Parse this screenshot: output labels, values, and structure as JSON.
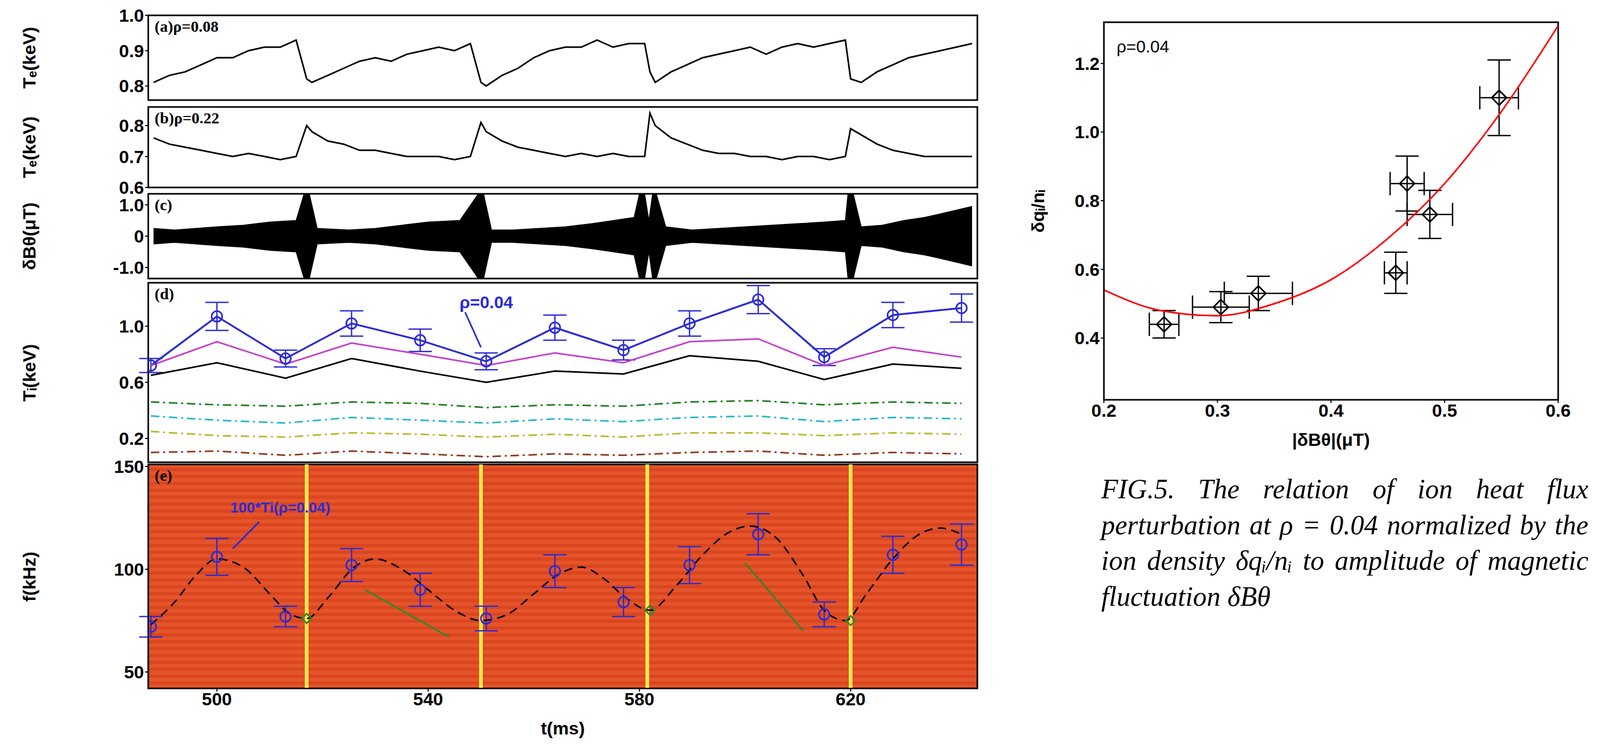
{
  "chart_data": [
    {
      "type": "line",
      "title": "(a)ρ=0.08",
      "ylabel": "Tₑ(keV)",
      "tick_labels": "y",
      "x": [
        488,
        491,
        494,
        497,
        500,
        503,
        506,
        509,
        512,
        515,
        517,
        518,
        521,
        524,
        527,
        530,
        533,
        536,
        539,
        542,
        545,
        548,
        550,
        551,
        554,
        557,
        560,
        563,
        566,
        569,
        572,
        575,
        578,
        581,
        582,
        583,
        586,
        589,
        592,
        595,
        598,
        601,
        604,
        607,
        610,
        613,
        616,
        619,
        620,
        622,
        625,
        628,
        631,
        634,
        637,
        640,
        643
      ],
      "series": [
        {
          "color": "#000000",
          "line_style": "solid",
          "values": [
            0.81,
            0.83,
            0.84,
            0.86,
            0.88,
            0.88,
            0.9,
            0.91,
            0.91,
            0.93,
            0.82,
            0.81,
            0.83,
            0.85,
            0.87,
            0.88,
            0.87,
            0.89,
            0.9,
            0.91,
            0.9,
            0.92,
            0.81,
            0.8,
            0.83,
            0.85,
            0.88,
            0.9,
            0.91,
            0.91,
            0.93,
            0.91,
            0.92,
            0.92,
            0.84,
            0.81,
            0.84,
            0.86,
            0.88,
            0.89,
            0.9,
            0.91,
            0.89,
            0.91,
            0.92,
            0.91,
            0.92,
            0.93,
            0.82,
            0.81,
            0.84,
            0.86,
            0.88,
            0.89,
            0.9,
            0.91,
            0.92
          ]
        }
      ],
      "xlim": [
        487,
        644
      ],
      "ylim": [
        0.76,
        1.0
      ],
      "yticks": [
        0.8,
        0.9,
        {
          "value": 1,
          "label": "1.0"
        }
      ]
    },
    {
      "type": "line",
      "title": "(b)ρ=0.22",
      "ylabel": "Tₑ(keV)",
      "tick_labels": "y",
      "x": [
        488,
        491,
        494,
        497,
        500,
        503,
        506,
        509,
        512,
        515,
        517,
        518,
        521,
        524,
        527,
        530,
        533,
        536,
        539,
        542,
        545,
        548,
        550,
        551,
        554,
        557,
        560,
        563,
        566,
        569,
        572,
        575,
        578,
        581,
        582,
        583,
        586,
        589,
        592,
        595,
        598,
        601,
        604,
        607,
        610,
        613,
        616,
        619,
        620,
        622,
        625,
        628,
        631,
        634,
        637,
        640,
        643
      ],
      "series": [
        {
          "color": "#000000",
          "line_style": "solid",
          "values": [
            0.76,
            0.74,
            0.73,
            0.72,
            0.71,
            0.7,
            0.71,
            0.7,
            0.69,
            0.7,
            0.8,
            0.78,
            0.75,
            0.74,
            0.72,
            0.72,
            0.71,
            0.7,
            0.7,
            0.7,
            0.69,
            0.7,
            0.81,
            0.78,
            0.75,
            0.73,
            0.72,
            0.71,
            0.7,
            0.71,
            0.7,
            0.71,
            0.7,
            0.7,
            0.84,
            0.8,
            0.76,
            0.74,
            0.72,
            0.71,
            0.71,
            0.7,
            0.7,
            0.69,
            0.7,
            0.7,
            0.69,
            0.7,
            0.79,
            0.77,
            0.74,
            0.72,
            0.71,
            0.7,
            0.7,
            0.7,
            0.7
          ]
        }
      ],
      "xlim": [
        487,
        644
      ],
      "ylim": [
        0.6,
        0.86
      ],
      "yticks": [
        0.6,
        0.7,
        0.8
      ]
    },
    {
      "type": "area",
      "title": "(c)",
      "ylabel": "δBθ(μT)",
      "tick_labels": "y",
      "x": [
        488,
        492,
        496,
        500,
        505,
        510,
        515,
        516.5,
        517.5,
        519,
        525,
        530,
        535,
        540,
        546,
        549.5,
        550.5,
        552,
        556,
        561,
        566,
        571,
        575,
        579,
        580,
        581,
        581.8,
        582.5,
        583.2,
        585,
        590,
        595,
        600,
        605,
        610,
        615,
        619,
        619.5,
        620.5,
        622,
        626,
        630,
        634,
        638,
        643
      ],
      "series": [
        {
          "color": "#000000",
          "upper": [
            0.25,
            0.2,
            0.25,
            0.3,
            0.35,
            0.45,
            0.5,
            1.35,
            1.35,
            0.25,
            0.2,
            0.25,
            0.35,
            0.45,
            0.5,
            1.35,
            1.35,
            0.2,
            0.2,
            0.25,
            0.3,
            0.4,
            0.5,
            0.6,
            1.35,
            1.35,
            0.5,
            1.35,
            1.35,
            0.3,
            0.2,
            0.25,
            0.3,
            0.35,
            0.4,
            0.45,
            0.5,
            1.35,
            1.35,
            0.3,
            0.35,
            0.5,
            0.6,
            0.75,
            0.95
          ],
          "lower": [
            -0.25,
            -0.2,
            -0.25,
            -0.3,
            -0.35,
            -0.45,
            -0.5,
            -1.35,
            -1.35,
            -0.25,
            -0.2,
            -0.25,
            -0.35,
            -0.45,
            -0.5,
            -1.35,
            -1.35,
            -0.2,
            -0.2,
            -0.25,
            -0.3,
            -0.4,
            -0.5,
            -0.6,
            -1.35,
            -1.35,
            -0.5,
            -1.35,
            -1.35,
            -0.3,
            -0.2,
            -0.25,
            -0.3,
            -0.35,
            -0.4,
            -0.45,
            -0.5,
            -1.35,
            -1.35,
            -0.3,
            -0.35,
            -0.5,
            -0.6,
            -0.75,
            -0.95
          ]
        }
      ],
      "xlim": [
        487,
        644
      ],
      "ylim": [
        -1.35,
        1.35
      ],
      "yticks": [
        {
          "value": -1,
          "label": "-1.0"
        },
        0,
        {
          "value": 1,
          "label": "1.0"
        }
      ]
    },
    {
      "type": "line",
      "title": "(d)",
      "ylabel": "Tᵢ(keV)",
      "tick_labels": "y",
      "x": [
        487.5,
        500,
        513,
        525.5,
        538.5,
        551,
        564,
        577,
        589.5,
        602.5,
        615,
        628,
        641
      ],
      "series": [
        {
          "name": "ρ=0.04",
          "color": "#2a2ad6",
          "marker": "circle",
          "line_style": "solid",
          "values": [
            0.72,
            1.07,
            0.77,
            1.02,
            0.9,
            0.75,
            0.99,
            0.83,
            1.02,
            1.19,
            0.78,
            1.08,
            1.13
          ],
          "errors": [
            0.05,
            0.1,
            0.06,
            0.09,
            0.08,
            0.06,
            0.09,
            0.07,
            0.09,
            0.1,
            0.06,
            0.09,
            0.1
          ]
        },
        {
          "color": "#c43ec8",
          "line_style": "solid",
          "values": [
            0.72,
            0.89,
            0.73,
            0.88,
            0.8,
            0.72,
            0.81,
            0.74,
            0.89,
            0.91,
            0.72,
            0.85,
            0.78
          ]
        },
        {
          "color": "#000000",
          "line_style": "solid",
          "values": [
            0.65,
            0.74,
            0.63,
            0.77,
            0.68,
            0.6,
            0.68,
            0.66,
            0.79,
            0.75,
            0.62,
            0.73,
            0.7
          ]
        },
        {
          "color": "#1f7f1f",
          "line_style": "dashdot",
          "values": [
            0.46,
            0.44,
            0.43,
            0.46,
            0.45,
            0.42,
            0.44,
            0.43,
            0.46,
            0.47,
            0.44,
            0.46,
            0.45
          ]
        },
        {
          "color": "#22b8c8",
          "line_style": "dashdot",
          "values": [
            0.36,
            0.33,
            0.31,
            0.35,
            0.33,
            0.31,
            0.34,
            0.32,
            0.35,
            0.36,
            0.32,
            0.35,
            0.34
          ]
        },
        {
          "color": "#b8b82a",
          "line_style": "dashdot",
          "values": [
            0.25,
            0.22,
            0.21,
            0.24,
            0.23,
            0.21,
            0.23,
            0.21,
            0.24,
            0.24,
            0.22,
            0.24,
            0.23
          ]
        },
        {
          "color": "#8b3a1a",
          "line_style": "dashdot",
          "values": [
            0.1,
            0.11,
            0.08,
            0.11,
            0.09,
            0.07,
            0.09,
            0.08,
            0.1,
            0.11,
            0.08,
            0.1,
            0.09
          ]
        }
      ],
      "xlim": [
        487,
        644
      ],
      "ylim": [
        0.03,
        1.31
      ],
      "yticks": [
        0.2,
        0.6,
        {
          "value": 1,
          "label": "1.0"
        }
      ]
    },
    {
      "type": "scatter",
      "title": "(e)",
      "ylabel": "f(kHz)",
      "xlabel": "t(ms)",
      "series": [
        {
          "name": "100*Ti(ρ=0.04)",
          "type": "scatter",
          "color": "#2a2ad6",
          "marker": "circle",
          "x": [
            487.5,
            500,
            513,
            525.5,
            538.5,
            551,
            564,
            577,
            589.5,
            602.5,
            615,
            628,
            641
          ],
          "values": [
            72,
            106,
            77,
            102,
            90,
            76,
            99,
            84,
            102,
            117,
            78,
            107,
            112
          ],
          "errors": [
            5,
            9,
            5,
            8,
            8,
            6,
            8,
            7,
            9,
            10,
            6,
            9,
            10
          ]
        },
        {
          "type": "line",
          "color": "#000000",
          "line_style": "dashed",
          "x": [
            487.5,
            492,
            496,
            500,
            505,
            510,
            514,
            517,
            521,
            526,
            530,
            535,
            540,
            545,
            550,
            555,
            560,
            565,
            569,
            573,
            577,
            582,
            587,
            592,
            597,
            601,
            606,
            611,
            615,
            619,
            623,
            628,
            633,
            637,
            641
          ],
          "values": [
            73,
            84,
            97,
            105,
            101,
            88,
            78,
            76,
            86,
            101,
            105,
            100,
            90,
            80,
            75,
            78,
            88,
            98,
            101,
            96,
            87,
            80,
            92,
            107,
            118,
            121,
            115,
            97,
            80,
            75,
            88,
            105,
            117,
            120,
            117
          ]
        },
        {
          "type": "line",
          "color": "#2a8a2a",
          "line_style": "solid",
          "x": [
            528,
            544
          ],
          "values": [
            90,
            67
          ]
        },
        {
          "type": "line",
          "color": "#2a8a2a",
          "line_style": "solid",
          "x": [
            600,
            611
          ],
          "values": [
            103,
            70
          ]
        },
        {
          "type": "scatter",
          "color": "#2a8a2a",
          "marker": "diamond",
          "x": [
            517,
            582,
            620
          ],
          "values": [
            76,
            80,
            75
          ]
        }
      ],
      "crash_times": [
        517,
        550,
        581.5,
        620
      ],
      "xlim": [
        487,
        644
      ],
      "xticks": [
        500,
        540,
        580,
        620
      ],
      "ylim": [
        42,
        151
      ],
      "yticks": [
        50,
        100,
        150
      ]
    },
    {
      "type": "scatter",
      "title": "ρ=0.04",
      "xlabel": "|δBθ|(μT)",
      "ylabel": "δqᵢ/nᵢ",
      "series": [
        {
          "type": "scatter",
          "color": "#000000",
          "marker": "diamond",
          "x": [
            0.253,
            0.303,
            0.336,
            0.457,
            0.467,
            0.487,
            0.548
          ],
          "values": [
            0.44,
            0.49,
            0.53,
            0.59,
            0.85,
            0.76,
            1.1
          ],
          "x_errors": [
            0.013,
            0.025,
            0.03,
            0.01,
            0.015,
            0.02,
            0.017
          ],
          "errors": [
            0.04,
            0.045,
            0.05,
            0.06,
            0.08,
            0.07,
            0.11
          ]
        },
        {
          "type": "line",
          "color": "#ff0000",
          "line_style": "solid",
          "x": [
            0.2,
            0.25,
            0.3,
            0.35,
            0.4,
            0.45,
            0.5,
            0.55,
            0.6
          ],
          "values": [
            0.54,
            0.48,
            0.465,
            0.5,
            0.57,
            0.69,
            0.85,
            1.06,
            1.31
          ]
        }
      ],
      "xlim": [
        0.2,
        0.6
      ],
      "xticks": [
        0.2,
        0.3,
        0.4,
        0.5,
        0.6
      ],
      "ylim": [
        0.22,
        1.32
      ],
      "yticks": [
        0.4,
        0.6,
        0.8,
        {
          "value": 1,
          "label": "1.0"
        },
        1.2
      ]
    }
  ],
  "caption": "FIG.5. The relation of ion heat flux perturbation at ρ = 0.04 normalized by the ion density δqᵢ/nᵢ to amplitude of magnetic fluctuation δBθ"
}
